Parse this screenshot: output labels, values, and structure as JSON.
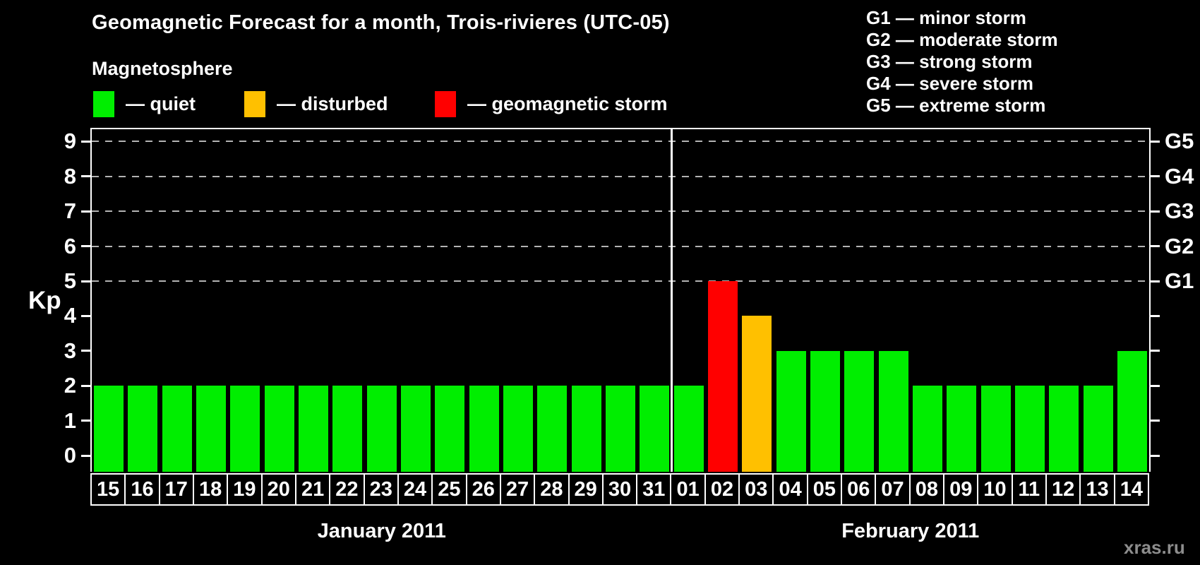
{
  "title": "Geomagnetic Forecast for a month, Trois-rivieres (UTC-05)",
  "legend": {
    "heading": "Magnetosphere",
    "items": [
      {
        "key": "quiet",
        "label": "— quiet",
        "color": "#00ee00"
      },
      {
        "key": "disturbed",
        "label": "— disturbed",
        "color": "#ffc000"
      },
      {
        "key": "storm",
        "label": "— geomagnetic storm",
        "color": "#ff0000"
      }
    ]
  },
  "g_legend": [
    "G1 — minor storm",
    "G2 — moderate storm",
    "G3 — strong storm",
    "G4 — severe storm",
    "G5 — extreme storm"
  ],
  "watermark": "xras.ru",
  "chart_data": {
    "type": "bar",
    "title": "Geomagnetic Forecast for a month, Trois-rivieres (UTC-05)",
    "ylabel": "Kp",
    "xlabel": "",
    "ylim": [
      -0.47,
      9.8
    ],
    "y_ticks": [
      0,
      1,
      2,
      3,
      4,
      5,
      6,
      7,
      8,
      9
    ],
    "gridlines_at": [
      5,
      6,
      7,
      8,
      9
    ],
    "grid": "dashed, only at Kp 5-9",
    "legend_position": "top",
    "right_axis": [
      {
        "kp": 5,
        "label": "G1"
      },
      {
        "kp": 6,
        "label": "G2"
      },
      {
        "kp": 7,
        "label": "G3"
      },
      {
        "kp": 8,
        "label": "G4"
      },
      {
        "kp": 9,
        "label": "G5"
      }
    ],
    "months": [
      {
        "label": "January 2011",
        "days": 17
      },
      {
        "label": "February 2011",
        "days": 14
      }
    ],
    "categories": [
      "15",
      "16",
      "17",
      "18",
      "19",
      "20",
      "21",
      "22",
      "23",
      "24",
      "25",
      "26",
      "27",
      "28",
      "29",
      "30",
      "31",
      "01",
      "02",
      "03",
      "04",
      "05",
      "06",
      "07",
      "08",
      "09",
      "10",
      "11",
      "12",
      "13",
      "14"
    ],
    "values": [
      2,
      2,
      2,
      2,
      2,
      2,
      2,
      2,
      2,
      2,
      2,
      2,
      2,
      2,
      2,
      2,
      2,
      2,
      5,
      4,
      3,
      3,
      3,
      3,
      2,
      2,
      2,
      2,
      2,
      2,
      3
    ],
    "statuses": [
      "quiet",
      "quiet",
      "quiet",
      "quiet",
      "quiet",
      "quiet",
      "quiet",
      "quiet",
      "quiet",
      "quiet",
      "quiet",
      "quiet",
      "quiet",
      "quiet",
      "quiet",
      "quiet",
      "quiet",
      "quiet",
      "storm",
      "disturbed",
      "quiet",
      "quiet",
      "quiet",
      "quiet",
      "quiet",
      "quiet",
      "quiet",
      "quiet",
      "quiet",
      "quiet",
      "quiet"
    ]
  }
}
